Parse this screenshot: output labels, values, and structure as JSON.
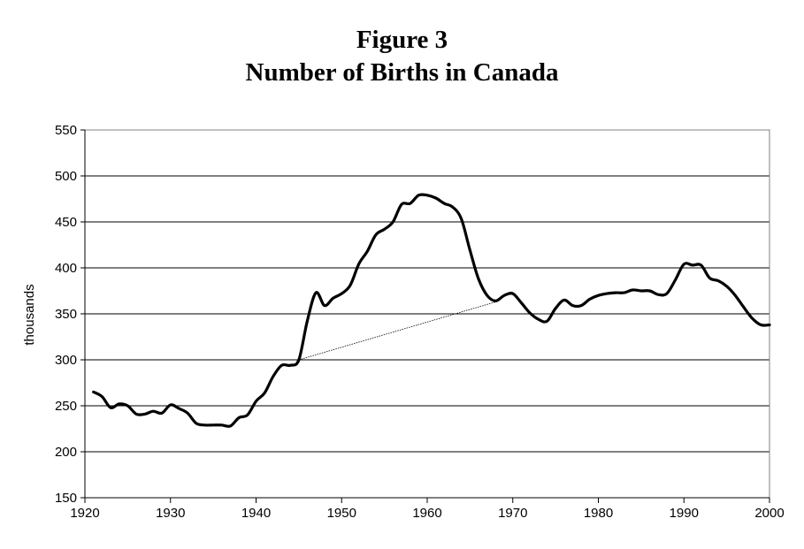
{
  "chart_data": {
    "type": "line",
    "title": "Figure 3",
    "subtitle": "Number of Births in Canada",
    "xlabel": "",
    "ylabel": "thousands",
    "xlim": [
      1920,
      2000
    ],
    "ylim": [
      150,
      550
    ],
    "x_ticks": [
      1920,
      1930,
      1940,
      1950,
      1960,
      1970,
      1980,
      1990,
      2000
    ],
    "y_ticks": [
      150,
      200,
      250,
      300,
      350,
      400,
      450,
      500,
      550
    ],
    "grid": "horizontal",
    "legend": "none",
    "series": [
      {
        "values": [
          [
            1921,
            265
          ],
          [
            1922,
            260
          ],
          [
            1923,
            248
          ],
          [
            1924,
            252
          ],
          [
            1925,
            250
          ],
          [
            1926,
            241
          ],
          [
            1927,
            241
          ],
          [
            1928,
            244
          ],
          [
            1929,
            242
          ],
          [
            1930,
            251
          ],
          [
            1931,
            247
          ],
          [
            1932,
            242
          ],
          [
            1933,
            231
          ],
          [
            1934,
            229
          ],
          [
            1935,
            229
          ],
          [
            1936,
            229
          ],
          [
            1937,
            228
          ],
          [
            1938,
            237
          ],
          [
            1939,
            240
          ],
          [
            1940,
            255
          ],
          [
            1941,
            264
          ],
          [
            1942,
            282
          ],
          [
            1943,
            294
          ],
          [
            1944,
            294
          ],
          [
            1945,
            300
          ],
          [
            1946,
            343
          ],
          [
            1947,
            373
          ],
          [
            1948,
            359
          ],
          [
            1949,
            367
          ],
          [
            1950,
            372
          ],
          [
            1951,
            381
          ],
          [
            1952,
            404
          ],
          [
            1953,
            418
          ],
          [
            1954,
            436
          ],
          [
            1955,
            442
          ],
          [
            1956,
            450
          ],
          [
            1957,
            469
          ],
          [
            1958,
            470
          ],
          [
            1959,
            479
          ],
          [
            1960,
            479
          ],
          [
            1961,
            476
          ],
          [
            1962,
            470
          ],
          [
            1963,
            466
          ],
          [
            1964,
            453
          ],
          [
            1965,
            419
          ],
          [
            1966,
            388
          ],
          [
            1967,
            370
          ],
          [
            1968,
            364
          ],
          [
            1969,
            370
          ],
          [
            1970,
            372
          ],
          [
            1971,
            362
          ],
          [
            1972,
            351
          ],
          [
            1973,
            344
          ],
          [
            1974,
            342
          ],
          [
            1975,
            356
          ],
          [
            1976,
            365
          ],
          [
            1977,
            359
          ],
          [
            1978,
            359
          ],
          [
            1979,
            366
          ],
          [
            1980,
            370
          ],
          [
            1981,
            372
          ],
          [
            1982,
            373
          ],
          [
            1983,
            373
          ],
          [
            1984,
            376
          ],
          [
            1985,
            375
          ],
          [
            1986,
            375
          ],
          [
            1987,
            371
          ],
          [
            1988,
            372
          ],
          [
            1989,
            387
          ],
          [
            1990,
            404
          ],
          [
            1991,
            403
          ],
          [
            1992,
            403
          ],
          [
            1993,
            389
          ],
          [
            1994,
            386
          ],
          [
            1995,
            380
          ],
          [
            1996,
            370
          ],
          [
            1997,
            357
          ],
          [
            1998,
            345
          ],
          [
            1999,
            338
          ],
          [
            2000,
            338
          ]
        ],
        "color": "#000000"
      },
      {
        "values": [
          [
            1945,
            300
          ],
          [
            1968,
            363
          ]
        ],
        "color": "#000000",
        "style": "thin"
      }
    ]
  }
}
